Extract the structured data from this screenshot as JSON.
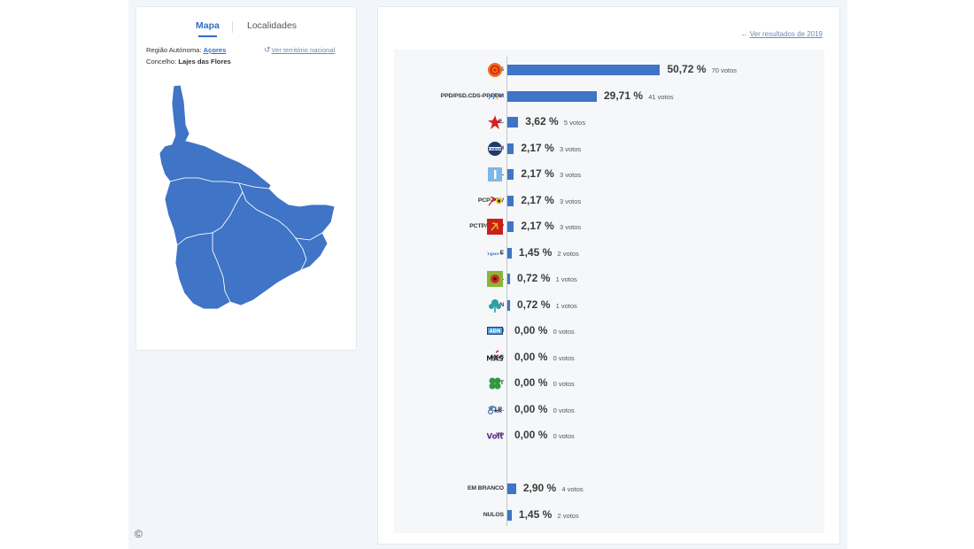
{
  "tabs": {
    "map": "Mapa",
    "places": "Localidades"
  },
  "region": {
    "region_label": "Região Autónoma:",
    "region_value": "Açores",
    "council_label": "Concelho:",
    "council_value": "Lajes das Flores",
    "national_link": "Ver território nacional"
  },
  "prev_results_link": "Ver resultados de 2019",
  "copyright_symbol": "©",
  "colors": {
    "bar": "#3f74c6",
    "map": "#3f74c6",
    "link": "#2f6fc4"
  },
  "parties": [
    {
      "name": "PS",
      "pct_label": "50,72 %",
      "votes_label": "70 votos",
      "pct": 50.72,
      "logo": "ps-fist-rose-icon"
    },
    {
      "name": "PPD/PSD.CDS-PP.PPM",
      "pct_label": "29,71 %",
      "votes_label": "41 votos",
      "pct": 29.71,
      "logo": "coalition-arrows-icon"
    },
    {
      "name": "B.E.",
      "pct_label": "3,62 %",
      "votes_label": "5 votos",
      "pct": 3.62,
      "logo": "red-star-icon"
    },
    {
      "name": "CH",
      "pct_label": "2,17 %",
      "votes_label": "3 votos",
      "pct": 2.17,
      "logo": "chega-badge-icon"
    },
    {
      "name": "IL",
      "pct_label": "2,17 %",
      "votes_label": "3 votos",
      "pct": 2.17,
      "logo": "liberal-blue-icon"
    },
    {
      "name": "PCP-PEV",
      "pct_label": "2,17 %",
      "votes_label": "3 votos",
      "pct": 2.17,
      "logo": "hammer-sickle-sunflower-icon"
    },
    {
      "name": "PCTP/MRPP",
      "pct_label": "2,17 %",
      "votes_label": "3 votos",
      "pct": 2.17,
      "logo": "hammer-sickle-red-icon"
    },
    {
      "name": "E",
      "pct_label": "1,45 %",
      "votes_label": "2 votos",
      "pct": 1.45,
      "logo": "ergue-te-icon"
    },
    {
      "name": "L",
      "pct_label": "0,72 %",
      "votes_label": "1 votos",
      "pct": 0.72,
      "logo": "livre-poppy-icon"
    },
    {
      "name": "PAN",
      "pct_label": "0,72 %",
      "votes_label": "1 votos",
      "pct": 0.72,
      "logo": "pan-tree-icon"
    },
    {
      "name": "ADN",
      "pct_label": "0,00 %",
      "votes_label": "0 votos",
      "pct": 0,
      "logo": "adn-badge-icon"
    },
    {
      "name": "MAS",
      "pct_label": "0,00 %",
      "votes_label": "0 votos",
      "pct": 0,
      "logo": "mas-text-icon"
    },
    {
      "name": "MPT",
      "pct_label": "0,00 %",
      "votes_label": "0 votos",
      "pct": 0,
      "logo": "clover-icon"
    },
    {
      "name": "R.I.R.",
      "pct_label": "0,00 %",
      "votes_label": "0 votos",
      "pct": 0,
      "logo": "rir-logo-icon"
    },
    {
      "name": "VP",
      "pct_label": "0,00 %",
      "votes_label": "0 votos",
      "pct": 0,
      "logo": "volt-text-icon"
    }
  ],
  "special": [
    {
      "name": "EM BRANCO",
      "pct_label": "2,90 %",
      "votes_label": "4 votos",
      "pct": 2.9
    },
    {
      "name": "NULOS",
      "pct_label": "1,45 %",
      "votes_label": "2 votos",
      "pct": 1.45
    }
  ],
  "chart_data": {
    "type": "bar",
    "title": "",
    "xlabel": "",
    "ylabel": "",
    "categories": [
      "PS",
      "PPD/PSD.CDS-PP.PPM",
      "B.E.",
      "CH",
      "IL",
      "PCP-PEV",
      "PCTP/MRPP",
      "E",
      "L",
      "PAN",
      "ADN",
      "MAS",
      "MPT",
      "R.I.R.",
      "VP",
      "EM BRANCO",
      "NULOS"
    ],
    "values": [
      50.72,
      29.71,
      3.62,
      2.17,
      2.17,
      2.17,
      2.17,
      1.45,
      0.72,
      0.72,
      0.0,
      0.0,
      0.0,
      0.0,
      0.0,
      2.9,
      1.45
    ],
    "votes": [
      70,
      41,
      5,
      3,
      3,
      3,
      3,
      2,
      1,
      1,
      0,
      0,
      0,
      0,
      0,
      4,
      2
    ],
    "orientation": "horizontal",
    "grid": false
  }
}
